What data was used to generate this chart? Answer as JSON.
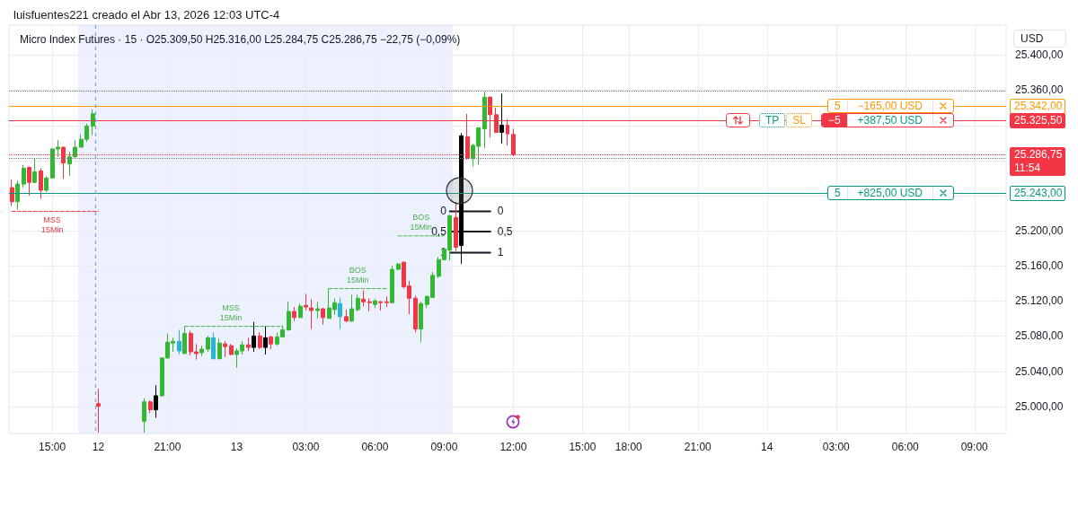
{
  "chart_data": {
    "type": "candlestick",
    "title": "luisfuentes221 creado el Abr 13, 2026 12:03 UTC-4",
    "subtitle": "Micro Index Futures · 15 · O25.309,50 H25.316,00 L25.284,75 C25.286,75 −22,75 (−0,09%)",
    "categories": [
      null,
      null,
      null,
      null,
      null,
      null,
      null,
      "15:00",
      null,
      null,
      null,
      null,
      null,
      null,
      null,
      "12",
      null,
      null,
      null,
      null,
      null,
      null,
      null,
      null,
      null,
      null,
      null,
      "21:00",
      null,
      null,
      null,
      null,
      null,
      null,
      null,
      null,
      null,
      null,
      null,
      "13",
      null,
      null,
      null,
      null,
      null,
      null,
      null,
      null,
      null,
      null,
      null,
      "03:00",
      null,
      null,
      null,
      null,
      null,
      null,
      null,
      null,
      null,
      null,
      null,
      "06:00",
      null,
      null,
      null,
      null,
      null,
      null,
      null,
      null,
      null,
      null,
      null,
      "09:00",
      null,
      null,
      null,
      null,
      null,
      null,
      null,
      null,
      null,
      null,
      null,
      "12:00",
      null,
      null,
      null,
      null,
      null,
      null,
      null,
      null,
      null,
      null,
      null,
      "15:00",
      null,
      null,
      null,
      null,
      null,
      null,
      null,
      "18:00",
      null,
      null,
      null,
      null,
      null,
      null,
      null,
      null,
      null,
      null,
      null,
      "21:00",
      null,
      null,
      null,
      null,
      null,
      null,
      null,
      null,
      null,
      null,
      null,
      "14",
      null,
      null,
      null,
      null,
      null,
      null,
      null,
      null,
      null,
      null,
      null,
      "03:00",
      null,
      null,
      null,
      null,
      null,
      null,
      null,
      null,
      null,
      null,
      null,
      "06:00",
      null,
      null,
      null,
      null,
      null,
      null,
      null,
      null,
      null,
      null,
      null,
      "09:00",
      null,
      null,
      null,
      null,
      null
    ],
    "ohlc": [
      [
        25249,
        25258,
        25228,
        25233
      ],
      [
        25233,
        25257,
        25224,
        25253
      ],
      [
        25253,
        25275,
        25249,
        25271
      ],
      [
        25272,
        25273,
        25240,
        25255
      ],
      [
        25255,
        25282,
        25254,
        25267
      ],
      [
        25268,
        25271,
        25236,
        25246
      ],
      [
        25246,
        25262,
        25244,
        25260
      ],
      [
        25260,
        25294,
        25260,
        25293
      ],
      [
        25293,
        25303,
        25284,
        25295
      ],
      [
        25295,
        25295,
        25259,
        25277
      ],
      [
        25276,
        25290,
        25262,
        25284
      ],
      [
        25284,
        25303,
        25283,
        25295
      ],
      [
        25295,
        25310,
        25295,
        25304
      ],
      [
        25304,
        25322,
        25301,
        25319
      ],
      [
        25319,
        25338,
        25309,
        25333
      ],
      [
        25003,
        25020,
        24970,
        25000
      ],
      null,
      null,
      null,
      null,
      null,
      null,
      null,
      [
        24983,
        25009,
        24970,
        25005
      ],
      [
        25005,
        25007,
        24992,
        24996
      ],
      [
        24996,
        25024,
        24987,
        25012
      ],
      [
        25012,
        25055,
        25011,
        25055
      ],
      [
        25055,
        25083,
        25054,
        25073
      ],
      [
        25072,
        25078,
        25062,
        25074
      ],
      [
        25074,
        25087,
        25059,
        25063
      ],
      [
        25060,
        25091,
        25060,
        25083
      ],
      [
        25083,
        25086,
        25058,
        25062
      ],
      [
        25062,
        25071,
        25053,
        25060
      ],
      [
        25061,
        25069,
        25057,
        25065
      ],
      [
        25065,
        25080,
        25062,
        25078
      ],
      [
        25078,
        25084,
        25054,
        25054
      ],
      [
        25054,
        25077,
        25054,
        25072
      ],
      [
        25071,
        25074,
        25056,
        25068
      ],
      [
        25069,
        25071,
        25058,
        25059
      ],
      [
        25059,
        25066,
        25044,
        25063
      ],
      [
        25063,
        25074,
        25059,
        25070
      ],
      [
        25070,
        25078,
        25063,
        25067
      ],
      [
        25067,
        25096,
        25062,
        25080
      ],
      [
        25080,
        25084,
        25065,
        25067
      ],
      [
        25067,
        25091,
        25059,
        25078
      ],
      [
        25079,
        25080,
        25065,
        25071
      ],
      [
        25071,
        25084,
        25069,
        25079
      ],
      [
        25079,
        25092,
        25078,
        25087
      ],
      [
        25087,
        25119,
        25086,
        25108
      ],
      [
        25108,
        25113,
        25097,
        25101
      ],
      [
        25101,
        25117,
        25101,
        25114
      ],
      [
        25115,
        25128,
        25109,
        25113
      ],
      [
        25112,
        25122,
        25088,
        25109
      ],
      [
        25109,
        25119,
        25100,
        25111
      ],
      [
        25111,
        25112,
        25093,
        25101
      ],
      [
        25100,
        25134,
        25100,
        25112
      ],
      [
        25110,
        25123,
        25104,
        25118
      ],
      [
        25117,
        25124,
        25088,
        25102
      ],
      [
        25102,
        25110,
        25096,
        25097
      ],
      [
        25097,
        25127,
        25096,
        25111
      ],
      [
        25110,
        25127,
        25108,
        25123
      ],
      [
        25122,
        25132,
        25114,
        25119
      ],
      [
        25119,
        25123,
        25108,
        25118
      ],
      [
        25116,
        25122,
        25112,
        25120
      ],
      [
        25119,
        25120,
        25109,
        25118
      ],
      [
        25119,
        25125,
        25113,
        25118
      ],
      [
        25118,
        25160,
        25117,
        25156
      ],
      [
        25156,
        25163,
        25155,
        25162
      ],
      [
        25164,
        25165,
        25134,
        25136
      ],
      [
        25137,
        25143,
        25105,
        25123
      ],
      [
        25123,
        25126,
        25084,
        25088
      ],
      [
        25088,
        25119,
        25073,
        25117
      ],
      [
        25116,
        25126,
        25112,
        25125
      ],
      [
        25124,
        25153,
        25123,
        25149
      ],
      [
        25148,
        25170,
        25146,
        25167
      ],
      [
        25167,
        25180,
        25166,
        25179
      ],
      [
        25178,
        25218,
        25166,
        25217
      ],
      [
        25215,
        25232,
        25177,
        25181
      ],
      [
        25183,
        25311,
        25162,
        25308
      ],
      [
        25307,
        25333,
        25281,
        25282
      ],
      [
        25282,
        25299,
        25273,
        25297
      ],
      [
        25296,
        25318,
        25275,
        25317
      ],
      [
        25316,
        25358,
        25294,
        25352
      ],
      [
        25352,
        25353,
        25306,
        25332
      ],
      [
        25332,
        25340,
        25311,
        25312
      ],
      [
        25312,
        25356,
        25299,
        25320
      ],
      [
        25320,
        25327,
        25297,
        25310
      ],
      [
        25309.5,
        25316,
        25284.75,
        25286.75
      ],
      null,
      null,
      null,
      null,
      null,
      null,
      null,
      null,
      null,
      null,
      null,
      null,
      null,
      null,
      null,
      null,
      null,
      null,
      null,
      null,
      null,
      null,
      null,
      null,
      null,
      null,
      null,
      null,
      null,
      null,
      null,
      null,
      null,
      null,
      null,
      null,
      null,
      null,
      null,
      null,
      null,
      null,
      null,
      null,
      null,
      null,
      null,
      null,
      null,
      null,
      null,
      null,
      null,
      null,
      null,
      null,
      null,
      null,
      null,
      null,
      null,
      null,
      null,
      null,
      null,
      null,
      null,
      null,
      null,
      null,
      null,
      null,
      null,
      null,
      null,
      null,
      null,
      null,
      null,
      null,
      null,
      null,
      null,
      null,
      null
    ],
    "colors": [
      "#f23645",
      "#33b833",
      "#33b833",
      "#f23645",
      "#33b833",
      "#f23645",
      "#33b833",
      "#33b833",
      "#33b833",
      "#f23645",
      "#33b833",
      "#33b833",
      "#33b833",
      "#33b833",
      "#33b833",
      "#f23645",
      null,
      null,
      null,
      null,
      null,
      null,
      null,
      "#33b833",
      "#f23645",
      "#000000",
      "#33b833",
      "#33b833",
      "#33b833",
      "#27b5d6",
      "#33b833",
      "#f23645",
      "#f23645",
      "#33b833",
      "#33b833",
      "#27b5d6",
      "#33b833",
      "#f23645",
      "#f23645",
      "#33b833",
      "#33b833",
      "#f23645",
      "#000000",
      "#f23645",
      "#000000",
      "#f23645",
      "#33b833",
      "#33b833",
      "#33b833",
      "#f23645",
      "#33b833",
      "#f23645",
      "#f23645",
      "#33b833",
      "#f23645",
      "#33b833",
      "#33b833",
      "#27b5d6",
      "#f23645",
      "#33b833",
      "#33b833",
      "#f23645",
      "#f23645",
      "#33b833",
      "#f23645",
      "#f23645",
      "#33b833",
      "#33b833",
      "#f23645",
      "#f23645",
      "#f23645",
      "#33b833",
      "#33b833",
      "#33b833",
      "#33b833",
      "#33b833",
      "#33b833",
      "#f23645",
      "#000000",
      "#f23645",
      "#33b833",
      "#33b833",
      "#33b833",
      "#f23645",
      "#f23645",
      "#000000",
      "#f23645",
      "#f23645",
      null,
      null,
      null,
      null,
      null,
      null,
      null,
      null,
      null,
      null,
      null,
      null,
      null,
      null,
      null,
      null,
      null,
      null,
      null,
      null,
      null,
      null,
      null,
      null,
      null,
      null,
      null,
      null,
      null,
      null,
      null,
      null,
      null,
      null,
      null,
      null,
      null,
      null,
      null,
      null,
      null,
      null,
      null,
      null,
      null,
      null,
      null,
      null,
      null,
      null,
      null,
      null,
      null,
      null,
      null,
      null,
      null,
      null,
      null,
      null,
      null,
      null,
      null,
      null,
      null,
      null,
      null,
      null,
      null,
      null,
      null,
      null,
      null,
      null,
      null,
      null,
      null,
      null,
      null,
      null,
      null,
      null,
      null,
      null,
      null
    ],
    "series": [
      {
        "type": "line",
        "name": "MSS 15Min",
        "color": "#f23645",
        "line_style": "dashed",
        "values": [
          25222,
          25222,
          25222,
          25222,
          25222,
          25222,
          25222,
          25222,
          25222,
          25222,
          25222,
          25222,
          25222,
          25222,
          25222,
          25222,
          null,
          null,
          null,
          null,
          null,
          null,
          null,
          null,
          null,
          null,
          null,
          null,
          null,
          null,
          null,
          null,
          null,
          null,
          null,
          null,
          null,
          null,
          null,
          null,
          null,
          null,
          null,
          null,
          null,
          null,
          null,
          null,
          null,
          null,
          null,
          null,
          null,
          null,
          null,
          null,
          null,
          null,
          null,
          null,
          null,
          null,
          null,
          null,
          null,
          null,
          null,
          null,
          null,
          null,
          null,
          null,
          null,
          null,
          null,
          null,
          null,
          null,
          null,
          null,
          null,
          null,
          null,
          null,
          null,
          null,
          null,
          null,
          null,
          null,
          null,
          null,
          null,
          null,
          null,
          null,
          null,
          null,
          null,
          null,
          null,
          null,
          null,
          null,
          null,
          null,
          null,
          null,
          null,
          null,
          null,
          null,
          null,
          null,
          null,
          null,
          null,
          null,
          null,
          null,
          null,
          null,
          null,
          null,
          null,
          null,
          null,
          null,
          null,
          null,
          null,
          null,
          null,
          null,
          null,
          null,
          null,
          null,
          null,
          null,
          null,
          null,
          null,
          null,
          null,
          null,
          null,
          null,
          null,
          null,
          null,
          null,
          null,
          null,
          null,
          null,
          null,
          null,
          null,
          null,
          null,
          null,
          null,
          null,
          null,
          null,
          null,
          null,
          null,
          null,
          null,
          null,
          null
        ]
      },
      {
        "type": "line",
        "name": "MSS 15Min",
        "color": "#4caf50",
        "line_style": "dashed",
        "values": [
          null,
          null,
          null,
          null,
          null,
          null,
          null,
          null,
          null,
          null,
          null,
          null,
          null,
          null,
          null,
          null,
          null,
          null,
          null,
          null,
          null,
          null,
          null,
          null,
          null,
          null,
          null,
          null,
          null,
          null,
          25091,
          25091,
          25091,
          25091,
          25091,
          25091,
          25091,
          25091,
          25091,
          25091,
          25091,
          25091,
          25091,
          25091,
          25091,
          25091,
          25091,
          25091,
          null,
          null,
          null,
          null,
          null,
          null,
          null,
          null,
          null,
          null,
          null,
          null,
          null,
          null,
          null,
          null,
          null,
          null,
          null,
          null,
          null,
          null,
          null,
          null,
          null,
          null,
          null,
          null,
          null,
          null,
          null,
          null,
          null,
          null,
          null,
          null,
          null,
          null,
          null,
          null,
          null,
          null,
          null,
          null,
          null,
          null,
          null,
          null,
          null,
          null,
          null,
          null,
          null,
          null,
          null,
          null,
          null,
          null,
          null,
          null,
          null,
          null,
          null,
          null,
          null,
          null,
          null,
          null,
          null,
          null,
          null,
          null,
          null,
          null,
          null,
          null,
          null,
          null,
          null,
          null,
          null,
          null,
          null,
          null,
          null,
          null,
          null,
          null,
          null,
          null,
          null,
          null,
          null,
          null,
          null,
          null,
          null,
          null,
          null,
          null,
          null,
          null,
          null,
          null,
          null,
          null,
          null,
          null,
          null,
          null,
          null,
          null,
          null,
          null,
          null,
          null,
          null,
          null,
          null,
          null,
          null,
          null,
          null,
          null,
          null
        ]
      },
      {
        "type": "line",
        "name": "BOS 15Min",
        "color": "#4caf50",
        "line_style": "dashed",
        "values": [
          null,
          null,
          null,
          null,
          null,
          null,
          null,
          null,
          null,
          null,
          null,
          null,
          null,
          null,
          null,
          null,
          null,
          null,
          null,
          null,
          null,
          null,
          null,
          null,
          null,
          null,
          null,
          null,
          null,
          null,
          null,
          null,
          null,
          null,
          null,
          null,
          null,
          null,
          null,
          null,
          null,
          null,
          null,
          null,
          null,
          null,
          null,
          null,
          null,
          null,
          null,
          null,
          null,
          null,
          null,
          25134,
          25134,
          25134,
          25134,
          25134,
          25134,
          25134,
          25134,
          25134,
          25134,
          25134,
          null,
          null,
          null,
          null,
          null,
          null,
          null,
          null,
          null,
          null,
          null,
          null,
          null,
          null,
          null,
          null,
          null,
          null,
          null,
          null,
          null,
          null,
          null,
          null,
          null,
          null,
          null,
          null,
          null,
          null,
          null,
          null,
          null,
          null,
          null,
          null,
          null,
          null,
          null,
          null,
          null,
          null,
          null,
          null,
          null,
          null,
          null,
          null,
          null,
          null,
          null,
          null,
          null,
          null,
          null,
          null,
          null,
          null,
          null,
          null,
          null,
          null,
          null,
          null,
          null,
          null,
          null,
          null,
          null,
          null,
          null,
          null,
          null,
          null,
          null,
          null,
          null,
          null,
          null,
          null,
          null,
          null,
          null,
          null,
          null,
          null,
          null,
          null,
          null,
          null,
          null,
          null,
          null,
          null,
          null,
          null,
          null,
          null,
          null,
          null,
          null,
          null,
          null,
          null,
          null,
          null,
          null
        ]
      },
      {
        "type": "line",
        "name": "BOS 15Min",
        "color": "#4caf50",
        "line_style": "dashed",
        "values": [
          null,
          null,
          null,
          null,
          null,
          null,
          null,
          null,
          null,
          null,
          null,
          null,
          null,
          null,
          null,
          null,
          null,
          null,
          null,
          null,
          null,
          null,
          null,
          null,
          null,
          null,
          null,
          null,
          null,
          null,
          null,
          null,
          null,
          null,
          null,
          null,
          null,
          null,
          null,
          null,
          null,
          null,
          null,
          null,
          null,
          null,
          null,
          null,
          null,
          null,
          null,
          null,
          null,
          null,
          null,
          null,
          null,
          null,
          null,
          null,
          null,
          null,
          null,
          null,
          null,
          null,
          null,
          25194,
          25194,
          25194,
          25194,
          25194,
          25194,
          25194,
          25194,
          25194,
          null,
          null,
          null,
          null,
          null,
          null,
          null,
          null,
          null,
          null,
          null,
          null,
          null,
          null,
          null,
          null,
          null,
          null,
          null,
          null,
          null,
          null,
          null,
          null,
          null,
          null,
          null,
          null,
          null,
          null,
          null,
          null,
          null,
          null,
          null,
          null,
          null,
          null,
          null,
          null,
          null,
          null,
          null,
          null,
          null,
          null,
          null,
          null,
          null,
          null,
          null,
          null,
          null,
          null,
          null,
          null,
          null,
          null,
          null,
          null,
          null,
          null,
          null,
          null,
          null,
          null,
          null,
          null,
          null,
          null,
          null,
          null,
          null,
          null,
          null,
          null,
          null,
          null,
          null,
          null,
          null,
          null,
          null,
          null,
          null,
          null,
          null,
          null,
          null,
          null,
          null,
          null,
          null,
          null,
          null,
          null,
          null
        ]
      },
      {
        "type": "line",
        "name": "0",
        "color": "#131722",
        "values": [
          null,
          null,
          null,
          null,
          null,
          null,
          null,
          null,
          null,
          null,
          null,
          null,
          null,
          null,
          null,
          null,
          null,
          null,
          null,
          null,
          null,
          null,
          null,
          null,
          null,
          null,
          null,
          null,
          null,
          null,
          null,
          null,
          null,
          null,
          null,
          null,
          null,
          null,
          null,
          null,
          null,
          null,
          null,
          null,
          null,
          null,
          null,
          null,
          null,
          null,
          null,
          null,
          null,
          null,
          null,
          null,
          null,
          null,
          null,
          null,
          null,
          null,
          null,
          null,
          null,
          null,
          null,
          null,
          null,
          null,
          null,
          null,
          null,
          null,
          null,
          null,
          25222,
          25222,
          25222,
          25222,
          25222,
          25222,
          25222,
          25222,
          null,
          null,
          null,
          null,
          null,
          null,
          null,
          null,
          null,
          null,
          null,
          null,
          null,
          null,
          null,
          null,
          null,
          null,
          null,
          null,
          null,
          null,
          null,
          null,
          null,
          null,
          null,
          null,
          null,
          null,
          null,
          null,
          null,
          null,
          null,
          null,
          null,
          null,
          null,
          null,
          null,
          null,
          null,
          null,
          null,
          null,
          null,
          null,
          null,
          null,
          null,
          null,
          null,
          null,
          null,
          null,
          null,
          null,
          null,
          null,
          null,
          null,
          null,
          null,
          null,
          null,
          null,
          null,
          null,
          null,
          null,
          null,
          null,
          null,
          null,
          null,
          null,
          null,
          null,
          null,
          null,
          null,
          null,
          null,
          null,
          null,
          null,
          null,
          null
        ]
      },
      {
        "type": "line",
        "name": "0,5",
        "color": "#131722",
        "values": [
          null,
          null,
          null,
          null,
          null,
          null,
          null,
          null,
          null,
          null,
          null,
          null,
          null,
          null,
          null,
          null,
          null,
          null,
          null,
          null,
          null,
          null,
          null,
          null,
          null,
          null,
          null,
          null,
          null,
          null,
          null,
          null,
          null,
          null,
          null,
          null,
          null,
          null,
          null,
          null,
          null,
          null,
          null,
          null,
          null,
          null,
          null,
          null,
          null,
          null,
          null,
          null,
          null,
          null,
          null,
          null,
          null,
          null,
          null,
          null,
          null,
          null,
          null,
          null,
          null,
          null,
          null,
          null,
          null,
          null,
          null,
          null,
          null,
          null,
          null,
          null,
          25199,
          25199,
          25199,
          25199,
          25199,
          25199,
          25199,
          25199,
          null,
          null,
          null,
          null,
          null,
          null,
          null,
          null,
          null,
          null,
          null,
          null,
          null,
          null,
          null,
          null,
          null,
          null,
          null,
          null,
          null,
          null,
          null,
          null,
          null,
          null,
          null,
          null,
          null,
          null,
          null,
          null,
          null,
          null,
          null,
          null,
          null,
          null,
          null,
          null,
          null,
          null,
          null,
          null,
          null,
          null,
          null,
          null,
          null,
          null,
          null,
          null,
          null,
          null,
          null,
          null,
          null,
          null,
          null,
          null,
          null,
          null,
          null,
          null,
          null,
          null,
          null,
          null,
          null,
          null,
          null,
          null,
          null,
          null,
          null,
          null,
          null,
          null,
          null,
          null,
          null,
          null,
          null,
          null,
          null,
          null,
          null,
          null,
          null
        ]
      },
      {
        "type": "line",
        "name": "1",
        "color": "#131722",
        "values": [
          null,
          null,
          null,
          null,
          null,
          null,
          null,
          null,
          null,
          null,
          null,
          null,
          null,
          null,
          null,
          null,
          null,
          null,
          null,
          null,
          null,
          null,
          null,
          null,
          null,
          null,
          null,
          null,
          null,
          null,
          null,
          null,
          null,
          null,
          null,
          null,
          null,
          null,
          null,
          null,
          null,
          null,
          null,
          null,
          null,
          null,
          null,
          null,
          null,
          null,
          null,
          null,
          null,
          null,
          null,
          null,
          null,
          null,
          null,
          null,
          null,
          null,
          null,
          null,
          null,
          null,
          null,
          null,
          null,
          null,
          null,
          null,
          null,
          null,
          null,
          null,
          25175,
          25175,
          25175,
          25175,
          25175,
          25175,
          25175,
          25175,
          null,
          null,
          null,
          null,
          null,
          null,
          null,
          null,
          null,
          null,
          null,
          null,
          null,
          null,
          null,
          null,
          null,
          null,
          null,
          null,
          null,
          null,
          null,
          null,
          null,
          null,
          null,
          null,
          null,
          null,
          null,
          null,
          null,
          null,
          null,
          null,
          null,
          null,
          null,
          null,
          null,
          null,
          null,
          null,
          null,
          null,
          null,
          null,
          null,
          null,
          null,
          null,
          null,
          null,
          null,
          null,
          null,
          null,
          null,
          null,
          null,
          null,
          null,
          null,
          null,
          null,
          null,
          null,
          null,
          null,
          null,
          null,
          null,
          null,
          null,
          null,
          null,
          null,
          null,
          null,
          null,
          null,
          null,
          null,
          null,
          null,
          null,
          null,
          null
        ]
      }
    ],
    "marker": "none",
    "ylim": [
      24969,
      25434
    ],
    "yticks": [
      {
        "value": 25000,
        "label": "25.000,00"
      },
      {
        "value": 25040,
        "label": "25.040,00"
      },
      {
        "value": 25080,
        "label": "25.080,00"
      },
      {
        "value": 25120,
        "label": "25.120,00"
      },
      {
        "value": 25160,
        "label": "25.160,00"
      },
      {
        "value": 25200,
        "label": "25.200,00"
      },
      {
        "value": 25240,
        "label": null
      },
      {
        "value": 25280,
        "label": null
      },
      {
        "value": 25320,
        "label": null
      },
      {
        "value": 25360,
        "label": "25.360,00"
      },
      {
        "value": 25400,
        "label": "25.400,00"
      }
    ],
    "grid": true,
    "ref_lines": [
      {
        "axis": "y",
        "value": 25342,
        "label": "25.342,00",
        "color": "#ff9800"
      },
      {
        "axis": "y",
        "value": 25325.5,
        "label": "25.325,50",
        "color": "#f23645"
      },
      {
        "axis": "y",
        "value": 25286.75,
        "label": "25.286,75",
        "color": "#f23645",
        "line_style": "dotted"
      },
      {
        "axis": "y",
        "value": 25243,
        "label": "25.243,00",
        "color": "#089981"
      },
      {
        "axis": "y",
        "value": 25359,
        "color": "#787b86",
        "line_style": "dotted"
      },
      {
        "axis": "y",
        "value": 25282,
        "color": "#787b86",
        "line_style": "dotted"
      },
      {
        "axis": "x",
        "value": "12",
        "color": "#7ba0ee",
        "line_style": "dashed"
      }
    ],
    "annotations": [
      "USD",
      {
        "text": "5",
        "y": 25342
      },
      {
        "text": "−165,00 USD",
        "y": 25342
      },
      {
        "text": "TP",
        "y": 25325.5
      },
      {
        "text": "SL",
        "y": 25325.5
      },
      {
        "text": "−5",
        "y": 25325.5
      },
      {
        "text": "+387,50 USD",
        "y": 25325.5
      },
      "11:54",
      {
        "text": "5",
        "y": 25243
      },
      {
        "text": "+825,00 USD",
        "y": 25243
      }
    ]
  }
}
